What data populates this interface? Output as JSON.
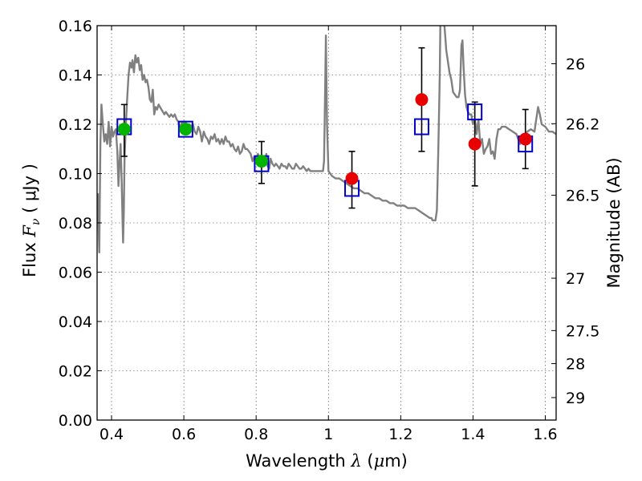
{
  "chart_data": {
    "type": "scatter",
    "xlabel": {
      "prefix": "Wavelength  ",
      "symbol": "λ",
      "unit_open": " (",
      "unit_mu": "μ",
      "unit_close": "m)"
    },
    "ylabel": {
      "prefix": "Flux  ",
      "symbol": "F",
      "subscript": "ν",
      "unit": "  ( μJy )"
    },
    "y2label": "Magnitude (AB)",
    "xlim": [
      0.36,
      1.63
    ],
    "ylim": [
      0.0,
      0.16
    ],
    "grid": true,
    "x_ticks": [
      {
        "value": 0.4,
        "label": "0.4"
      },
      {
        "value": 0.6,
        "label": "0.6"
      },
      {
        "value": 0.8,
        "label": "0.8"
      },
      {
        "value": 1.0,
        "label": "1"
      },
      {
        "value": 1.2,
        "label": "1.2"
      },
      {
        "value": 1.4,
        "label": "1.4"
      },
      {
        "value": 1.6,
        "label": "1.6"
      }
    ],
    "y_ticks": [
      {
        "value": 0.0,
        "label": "0.00"
      },
      {
        "value": 0.02,
        "label": "0.02"
      },
      {
        "value": 0.04,
        "label": "0.04"
      },
      {
        "value": 0.06,
        "label": "0.06"
      },
      {
        "value": 0.08,
        "label": "0.08"
      },
      {
        "value": 0.1,
        "label": "0.10"
      },
      {
        "value": 0.12,
        "label": "0.12"
      },
      {
        "value": 0.14,
        "label": "0.14"
      },
      {
        "value": 0.16,
        "label": "0.16"
      }
    ],
    "mag_ticks": [
      {
        "value": 26,
        "label": "26"
      },
      {
        "value": 26.2,
        "label": "26.2"
      },
      {
        "value": 26.5,
        "label": "26.5"
      },
      {
        "value": 27,
        "label": "27"
      },
      {
        "value": 27.5,
        "label": "27.5"
      },
      {
        "value": 28,
        "label": "28"
      },
      {
        "value": 29,
        "label": "29"
      }
    ],
    "sed_model": {
      "color": "#808080",
      "points": [
        [
          0.362,
          0.092
        ],
        [
          0.366,
          0.068
        ],
        [
          0.369,
          0.112
        ],
        [
          0.372,
          0.128
        ],
        [
          0.376,
          0.12
        ],
        [
          0.38,
          0.113
        ],
        [
          0.384,
          0.116
        ],
        [
          0.388,
          0.112
        ],
        [
          0.392,
          0.121
        ],
        [
          0.396,
          0.111
        ],
        [
          0.4,
          0.119
        ],
        [
          0.404,
          0.115
        ],
        [
          0.408,
          0.117
        ],
        [
          0.412,
          0.118
        ],
        [
          0.416,
          0.109
        ],
        [
          0.419,
          0.095
        ],
        [
          0.422,
          0.104
        ],
        [
          0.425,
          0.112
        ],
        [
          0.428,
          0.097
        ],
        [
          0.431,
          0.077
        ],
        [
          0.432,
          0.072
        ],
        [
          0.434,
          0.085
        ],
        [
          0.436,
          0.106
        ],
        [
          0.439,
          0.118
        ],
        [
          0.443,
          0.13
        ],
        [
          0.447,
          0.14
        ],
        [
          0.451,
          0.145
        ],
        [
          0.455,
          0.143
        ],
        [
          0.458,
          0.146
        ],
        [
          0.462,
          0.141
        ],
        [
          0.466,
          0.148
        ],
        [
          0.47,
          0.145
        ],
        [
          0.474,
          0.147
        ],
        [
          0.478,
          0.142
        ],
        [
          0.482,
          0.144
        ],
        [
          0.486,
          0.138
        ],
        [
          0.49,
          0.14
        ],
        [
          0.494,
          0.137
        ],
        [
          0.498,
          0.138
        ],
        [
          0.502,
          0.135
        ],
        [
          0.506,
          0.13
        ],
        [
          0.51,
          0.129
        ],
        [
          0.514,
          0.134
        ],
        [
          0.518,
          0.124
        ],
        [
          0.522,
          0.127
        ],
        [
          0.526,
          0.126
        ],
        [
          0.53,
          0.128
        ],
        [
          0.534,
          0.127
        ],
        [
          0.538,
          0.126
        ],
        [
          0.542,
          0.125
        ],
        [
          0.546,
          0.124
        ],
        [
          0.55,
          0.125
        ],
        [
          0.555,
          0.124
        ],
        [
          0.56,
          0.123
        ],
        [
          0.565,
          0.124
        ],
        [
          0.57,
          0.123
        ],
        [
          0.575,
          0.124
        ],
        [
          0.58,
          0.122
        ],
        [
          0.585,
          0.121
        ],
        [
          0.59,
          0.118
        ],
        [
          0.595,
          0.121
        ],
        [
          0.6,
          0.12
        ],
        [
          0.605,
          0.121
        ],
        [
          0.61,
          0.117
        ],
        [
          0.615,
          0.12
        ],
        [
          0.62,
          0.119
        ],
        [
          0.625,
          0.12
        ],
        [
          0.63,
          0.117
        ],
        [
          0.635,
          0.116
        ],
        [
          0.64,
          0.119
        ],
        [
          0.645,
          0.117
        ],
        [
          0.65,
          0.113
        ],
        [
          0.655,
          0.117
        ],
        [
          0.66,
          0.115
        ],
        [
          0.665,
          0.114
        ],
        [
          0.67,
          0.112
        ],
        [
          0.675,
          0.115
        ],
        [
          0.68,
          0.114
        ],
        [
          0.685,
          0.116
        ],
        [
          0.69,
          0.113
        ],
        [
          0.695,
          0.114
        ],
        [
          0.7,
          0.112
        ],
        [
          0.705,
          0.114
        ],
        [
          0.71,
          0.112
        ],
        [
          0.715,
          0.115
        ],
        [
          0.72,
          0.113
        ],
        [
          0.725,
          0.113
        ],
        [
          0.73,
          0.111
        ],
        [
          0.735,
          0.112
        ],
        [
          0.74,
          0.11
        ],
        [
          0.745,
          0.109
        ],
        [
          0.75,
          0.111
        ],
        [
          0.755,
          0.108
        ],
        [
          0.76,
          0.109
        ],
        [
          0.765,
          0.112
        ],
        [
          0.77,
          0.11
        ],
        [
          0.775,
          0.11
        ],
        [
          0.78,
          0.109
        ],
        [
          0.785,
          0.108
        ],
        [
          0.79,
          0.105
        ],
        [
          0.795,
          0.107
        ],
        [
          0.8,
          0.106
        ],
        [
          0.805,
          0.108
        ],
        [
          0.81,
          0.106
        ],
        [
          0.815,
          0.105
        ],
        [
          0.82,
          0.106
        ],
        [
          0.825,
          0.104
        ],
        [
          0.828,
          0.108
        ],
        [
          0.832,
          0.103
        ],
        [
          0.836,
          0.102
        ],
        [
          0.84,
          0.106
        ],
        [
          0.845,
          0.104
        ],
        [
          0.85,
          0.103
        ],
        [
          0.855,
          0.104
        ],
        [
          0.86,
          0.103
        ],
        [
          0.865,
          0.102
        ],
        [
          0.87,
          0.104
        ],
        [
          0.875,
          0.103
        ],
        [
          0.88,
          0.103
        ],
        [
          0.885,
          0.102
        ],
        [
          0.89,
          0.104
        ],
        [
          0.895,
          0.103
        ],
        [
          0.9,
          0.102
        ],
        [
          0.905,
          0.102
        ],
        [
          0.91,
          0.104
        ],
        [
          0.915,
          0.103
        ],
        [
          0.92,
          0.102
        ],
        [
          0.925,
          0.102
        ],
        [
          0.93,
          0.103
        ],
        [
          0.935,
          0.102
        ],
        [
          0.94,
          0.101
        ],
        [
          0.945,
          0.102
        ],
        [
          0.95,
          0.101
        ],
        [
          0.955,
          0.101
        ],
        [
          0.96,
          0.101
        ],
        [
          0.965,
          0.101
        ],
        [
          0.97,
          0.101
        ],
        [
          0.975,
          0.101
        ],
        [
          0.98,
          0.101
        ],
        [
          0.985,
          0.101
        ],
        [
          0.988,
          0.105
        ],
        [
          0.991,
          0.135
        ],
        [
          0.993,
          0.156
        ],
        [
          0.996,
          0.12
        ],
        [
          1.0,
          0.101
        ],
        [
          1.01,
          0.099
        ],
        [
          1.02,
          0.098
        ],
        [
          1.03,
          0.098
        ],
        [
          1.04,
          0.097
        ],
        [
          1.05,
          0.096
        ],
        [
          1.06,
          0.095
        ],
        [
          1.07,
          0.094
        ],
        [
          1.08,
          0.094
        ],
        [
          1.09,
          0.093
        ],
        [
          1.1,
          0.092
        ],
        [
          1.11,
          0.092
        ],
        [
          1.12,
          0.091
        ],
        [
          1.13,
          0.09
        ],
        [
          1.14,
          0.09
        ],
        [
          1.15,
          0.089
        ],
        [
          1.16,
          0.089
        ],
        [
          1.17,
          0.088
        ],
        [
          1.18,
          0.088
        ],
        [
          1.19,
          0.087
        ],
        [
          1.2,
          0.087
        ],
        [
          1.21,
          0.087
        ],
        [
          1.22,
          0.086
        ],
        [
          1.23,
          0.086
        ],
        [
          1.24,
          0.086
        ],
        [
          1.25,
          0.085
        ],
        [
          1.26,
          0.084
        ],
        [
          1.27,
          0.083
        ],
        [
          1.28,
          0.082
        ],
        [
          1.285,
          0.082
        ],
        [
          1.288,
          0.081
        ],
        [
          1.292,
          0.081
        ],
        [
          1.296,
          0.081
        ],
        [
          1.3,
          0.085
        ],
        [
          1.304,
          0.11
        ],
        [
          1.308,
          0.14
        ],
        [
          1.31,
          0.165
        ],
        [
          1.318,
          0.165
        ],
        [
          1.322,
          0.158
        ],
        [
          1.326,
          0.15
        ],
        [
          1.33,
          0.146
        ],
        [
          1.335,
          0.141
        ],
        [
          1.34,
          0.138
        ],
        [
          1.345,
          0.133
        ],
        [
          1.35,
          0.132
        ],
        [
          1.355,
          0.131
        ],
        [
          1.36,
          0.131
        ],
        [
          1.364,
          0.134
        ],
        [
          1.368,
          0.152
        ],
        [
          1.371,
          0.154
        ],
        [
          1.374,
          0.143
        ],
        [
          1.378,
          0.132
        ],
        [
          1.382,
          0.127
        ],
        [
          1.386,
          0.125
        ],
        [
          1.39,
          0.124
        ],
        [
          1.395,
          0.124
        ],
        [
          1.4,
          0.12
        ],
        [
          1.405,
          0.122
        ],
        [
          1.41,
          0.116
        ],
        [
          1.415,
          0.122
        ],
        [
          1.42,
          0.112
        ],
        [
          1.425,
          0.114
        ],
        [
          1.43,
          0.108
        ],
        [
          1.435,
          0.11
        ],
        [
          1.44,
          0.111
        ],
        [
          1.445,
          0.114
        ],
        [
          1.45,
          0.108
        ],
        [
          1.455,
          0.109
        ],
        [
          1.46,
          0.106
        ],
        [
          1.465,
          0.114
        ],
        [
          1.47,
          0.118
        ],
        [
          1.475,
          0.118
        ],
        [
          1.48,
          0.119
        ],
        [
          1.49,
          0.119
        ],
        [
          1.5,
          0.118
        ],
        [
          1.51,
          0.117
        ],
        [
          1.52,
          0.116
        ],
        [
          1.53,
          0.112
        ],
        [
          1.54,
          0.115
        ],
        [
          1.55,
          0.117
        ],
        [
          1.56,
          0.118
        ],
        [
          1.57,
          0.117
        ],
        [
          1.575,
          0.122
        ],
        [
          1.58,
          0.127
        ],
        [
          1.585,
          0.124
        ],
        [
          1.59,
          0.12
        ],
        [
          1.6,
          0.119
        ],
        [
          1.61,
          0.117
        ],
        [
          1.62,
          0.117
        ],
        [
          1.63,
          0.116
        ]
      ]
    },
    "series": [
      {
        "marker": "square",
        "color": "#0000cc",
        "x": [
          0.435,
          0.605,
          0.815,
          1.065,
          1.258,
          1.405,
          1.545
        ],
        "y": [
          0.119,
          0.118,
          0.104,
          0.094,
          0.119,
          0.125,
          0.112
        ]
      },
      {
        "marker": "circle",
        "color": "#00b400",
        "x": [
          0.435,
          0.605,
          0.815
        ],
        "y": [
          0.118,
          0.118,
          0.105
        ]
      },
      {
        "marker": "circle",
        "color": "#e80000",
        "x": [
          1.065,
          1.258,
          1.405,
          1.545
        ],
        "y": [
          0.098,
          0.13,
          0.112,
          0.114
        ]
      }
    ],
    "errorbars": [
      {
        "x": 0.435,
        "low": 0.107,
        "high": 0.128
      },
      {
        "x": 0.605,
        "low": 0.117,
        "high": 0.119
      },
      {
        "x": 0.815,
        "low": 0.096,
        "high": 0.113
      },
      {
        "x": 1.065,
        "low": 0.086,
        "high": 0.109
      },
      {
        "x": 1.258,
        "low": 0.109,
        "high": 0.151
      },
      {
        "x": 1.405,
        "low": 0.095,
        "high": 0.129
      },
      {
        "x": 1.545,
        "low": 0.102,
        "high": 0.126
      }
    ]
  }
}
